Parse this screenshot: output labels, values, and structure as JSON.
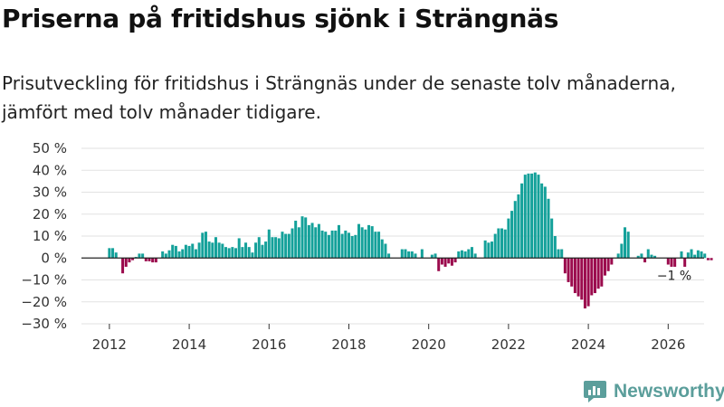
{
  "title": "Priserna på fritidshus sjönk i Strängnäs",
  "subtitle": "Prisutveckling för fritidshus i Strängnäs under de senaste tolv månaderna, jämfört med tolv månader tidigare.",
  "brand": {
    "name": "Newsworthy"
  },
  "colors": {
    "positive": "#14a19a",
    "negative": "#9b0b4d",
    "grid": "#e2e2e2",
    "brand": "#5b9e9b"
  },
  "chart_data": {
    "type": "bar",
    "title": "Priserna på fritidshus sjönk i Strängnäs",
    "xlabel": "",
    "ylabel": "",
    "ylim": [
      -30,
      50
    ],
    "xlim": [
      2011.3,
      2026.9
    ],
    "grid": true,
    "legend": "none",
    "y_ticks": [
      {
        "value": 50,
        "label": "50 %"
      },
      {
        "value": 40,
        "label": "40 %"
      },
      {
        "value": 30,
        "label": "30 %"
      },
      {
        "value": 20,
        "label": "20 %"
      },
      {
        "value": 10,
        "label": "10 %"
      },
      {
        "value": 0,
        "label": "0 %"
      },
      {
        "value": -10,
        "label": "−10 %"
      },
      {
        "value": -20,
        "label": "−20 %"
      },
      {
        "value": -30,
        "label": "−30 %"
      }
    ],
    "x_ticks": [
      {
        "value": 2012,
        "label": "2012"
      },
      {
        "value": 2014,
        "label": "2014"
      },
      {
        "value": 2016,
        "label": "2016"
      },
      {
        "value": 2018,
        "label": "2018"
      },
      {
        "value": 2020,
        "label": "2020"
      },
      {
        "value": 2022,
        "label": "2022"
      },
      {
        "value": 2024,
        "label": "2024"
      },
      {
        "value": 2026,
        "label": "2026"
      }
    ],
    "start_year": 2012,
    "start_month": 1,
    "unit": "%",
    "values": [
      4.5,
      4.5,
      2.5,
      0,
      -7,
      -4,
      -2,
      -1,
      0.5,
      2,
      2,
      -1.5,
      -1.5,
      -2,
      -2,
      0,
      3,
      2,
      3.5,
      6,
      5.5,
      3,
      4,
      6,
      5.5,
      6.5,
      4,
      7,
      11.5,
      12,
      7.5,
      7,
      9.5,
      7,
      6.5,
      5,
      4.5,
      5,
      4.5,
      9,
      5,
      7,
      5,
      2.5,
      7,
      9.5,
      6,
      7.5,
      13,
      9.5,
      9.5,
      9,
      12,
      11,
      11,
      13.5,
      17,
      14,
      19,
      18.5,
      15,
      16,
      14,
      15.5,
      12.5,
      12,
      10.5,
      12.5,
      12.5,
      15,
      11,
      12.5,
      11.5,
      10,
      10.5,
      15.5,
      14,
      13,
      15,
      14.5,
      12,
      12,
      8.5,
      6.5,
      2,
      0,
      0,
      0,
      4,
      4,
      3,
      3,
      2,
      0,
      4,
      0,
      0,
      1.5,
      2,
      -6,
      -3,
      -4,
      -2.5,
      -3.5,
      -2,
      3,
      3.5,
      3,
      4,
      5,
      2,
      0,
      0,
      8,
      7,
      7.5,
      11,
      13.5,
      13.5,
      13,
      18,
      21.5,
      26,
      29,
      34,
      38,
      38.5,
      38.5,
      39,
      38,
      34,
      32.5,
      27,
      18,
      10,
      4,
      4,
      -7,
      -11,
      -13,
      -16,
      -17.5,
      -19,
      -23,
      -22,
      -17,
      -16,
      -14,
      -13,
      -8,
      -6,
      -3,
      0,
      2,
      6.5,
      14,
      12,
      0,
      0,
      1,
      2,
      -2,
      4,
      1.5,
      1,
      0,
      0,
      0,
      -3,
      -4,
      -4,
      0,
      3,
      -4,
      2.5,
      4,
      1.5,
      3.5,
      3,
      2,
      -1,
      -1
    ],
    "annotations": [
      {
        "text": "−1 %",
        "x": 2026.08,
        "y": -1
      }
    ]
  }
}
